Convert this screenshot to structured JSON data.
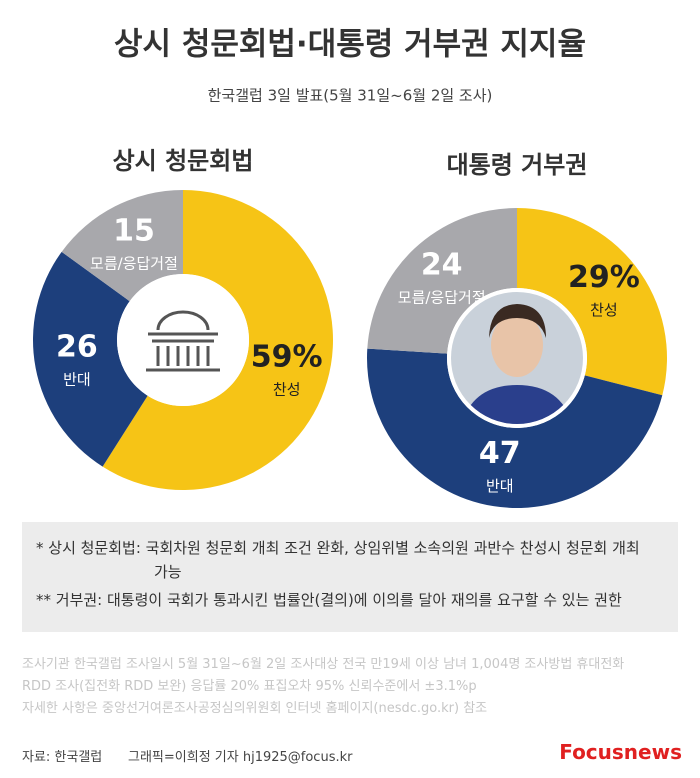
{
  "title": "상시 청문회법·대통령 거부권 지지율",
  "subtitle": "한국갤럽 3일 발표(5월 31일~6월 2일 조사)",
  "chart_data": [
    {
      "type": "pie",
      "title": "상시 청문회법",
      "categories": [
        "찬성",
        "반대",
        "모름/응답거절"
      ],
      "values": [
        59,
        26,
        15
      ],
      "value_labels": [
        "59%",
        "26",
        "15"
      ],
      "colors": [
        "#f6c416",
        "#1d3f7c",
        "#a8a8ac"
      ]
    },
    {
      "type": "pie",
      "title": "대통령 거부권",
      "categories": [
        "찬성",
        "반대",
        "모름/응답거절"
      ],
      "values": [
        29,
        47,
        24
      ],
      "value_labels": [
        "29%",
        "47",
        "24"
      ],
      "colors": [
        "#f6c416",
        "#1d3f7c",
        "#a8a8ac"
      ]
    }
  ],
  "notes": [
    "* 상시 청문회법: 국회차원 청문회 개최 조건 완화, 상임위별 소속의원 과반수 찬성시 청문회 개최 가능",
    "** 거부권: 대통령이 국회가 통과시킨 법률안(결의)에 이의를 달아 재의를 요구할 수 있는 권한"
  ],
  "survey": [
    "조사기관 한국갤럽 조사일시 5월 31일~6월 2일 조사대상 전국 만19세 이상 남녀 1,004명 조사방법 휴대전화",
    "RDD 조사(집전화 RDD 보완) 응답률 20% 표집오차 95% 신뢰수준에서 ±3.1%p",
    "자세한 사항은 중앙선거여론조사공정심의위원회 인터넷 홈페이지(nesdc.go.kr) 참조"
  ],
  "footer": {
    "source": "자료: 한국갤럽",
    "credit": "그래픽=이희정 기자 hj1925@focus.kr",
    "logo": "Focusnews"
  }
}
